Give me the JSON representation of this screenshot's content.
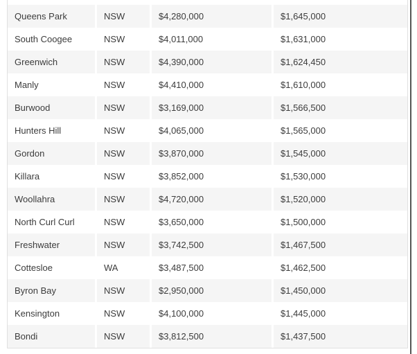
{
  "table": {
    "rows": [
      {
        "name": "Queens Park",
        "state": "NSW",
        "price_a": "$4,280,000",
        "price_b": "$1,645,000"
      },
      {
        "name": "South Coogee",
        "state": "NSW",
        "price_a": "$4,011,000",
        "price_b": "$1,631,000"
      },
      {
        "name": "Greenwich",
        "state": "NSW",
        "price_a": "$4,390,000",
        "price_b": "$1,624,450"
      },
      {
        "name": "Manly",
        "state": "NSW",
        "price_a": "$4,410,000",
        "price_b": "$1,610,000"
      },
      {
        "name": "Burwood",
        "state": "NSW",
        "price_a": "$3,169,000",
        "price_b": "$1,566,500"
      },
      {
        "name": "Hunters Hill",
        "state": "NSW",
        "price_a": "$4,065,000",
        "price_b": "$1,565,000"
      },
      {
        "name": "Gordon",
        "state": "NSW",
        "price_a": "$3,870,000",
        "price_b": "$1,545,000"
      },
      {
        "name": "Killara",
        "state": "NSW",
        "price_a": "$3,852,000",
        "price_b": "$1,530,000"
      },
      {
        "name": "Woollahra",
        "state": "NSW",
        "price_a": "$4,720,000",
        "price_b": "$1,520,000"
      },
      {
        "name": "North Curl Curl",
        "state": "NSW",
        "price_a": "$3,650,000",
        "price_b": "$1,500,000"
      },
      {
        "name": "Freshwater",
        "state": "NSW",
        "price_a": "$3,742,500",
        "price_b": "$1,467,500"
      },
      {
        "name": "Cottesloe",
        "state": "WA",
        "price_a": "$3,487,500",
        "price_b": "$1,462,500"
      },
      {
        "name": "Byron Bay",
        "state": "NSW",
        "price_a": "$2,950,000",
        "price_b": "$1,450,000"
      },
      {
        "name": "Kensington",
        "state": "NSW",
        "price_a": "$4,100,000",
        "price_b": "$1,445,000"
      },
      {
        "name": "Bondi",
        "state": "NSW",
        "price_a": "$3,812,500",
        "price_b": "$1,437,500"
      }
    ]
  },
  "colors": {
    "row_stripe": "#f5f5f5",
    "row_plain": "#ffffff",
    "table_border": "#e0e0e0",
    "cell_gap": "#ffffff",
    "text": "#3c3c3c",
    "edge_line": "#555555"
  }
}
